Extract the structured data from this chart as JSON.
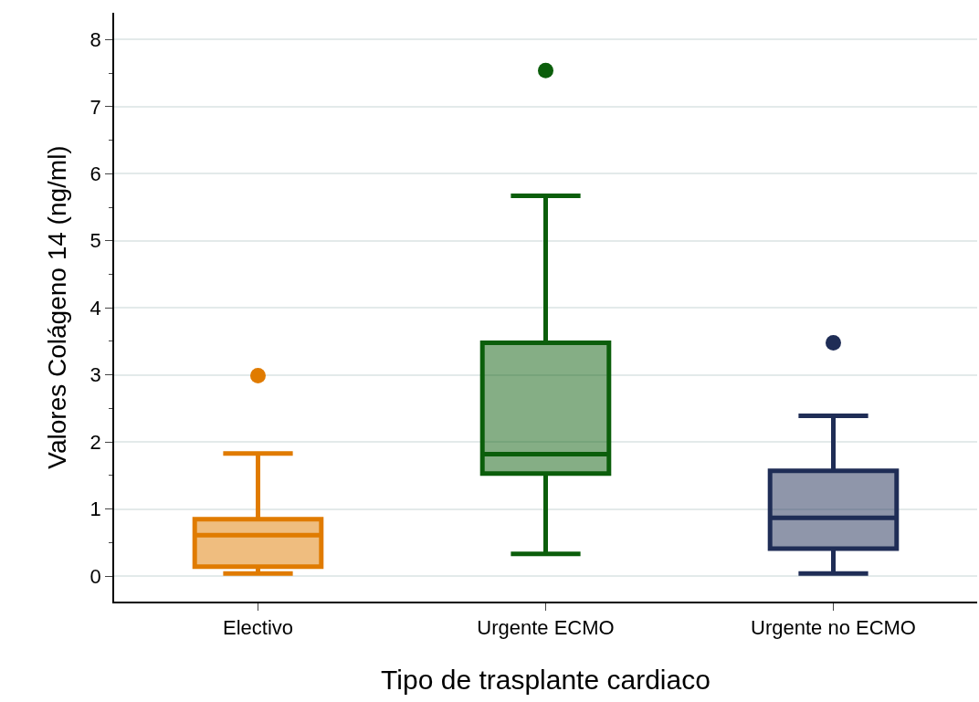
{
  "chart_data": {
    "type": "box",
    "xlabel": "Tipo de trasplante cardiaco",
    "ylabel": "Valores Colágeno 14 (ng/ml)",
    "categories": [
      "Electivo",
      "Urgente ECMO",
      "Urgente no ECMO"
    ],
    "colors": [
      "#e07b00",
      "#0b5e0b",
      "#1f2d56"
    ],
    "boxes": [
      {
        "low": 0.04,
        "q1": 0.14,
        "median": 0.61,
        "q3": 0.85,
        "high": 1.83,
        "outliers": [
          2.99
        ]
      },
      {
        "low": 0.33,
        "q1": 1.53,
        "median": 1.82,
        "q3": 3.48,
        "high": 5.67,
        "outliers": [
          7.54
        ]
      },
      {
        "low": 0.04,
        "q1": 0.41,
        "median": 0.87,
        "q3": 1.57,
        "high": 2.39,
        "outliers": [
          3.48
        ]
      }
    ],
    "ylim": [
      -0.38,
      8.4
    ],
    "yticks": [
      0,
      {
        "value": 0.5,
        "label": null
      },
      1,
      {
        "value": 1.5,
        "label": null
      },
      2,
      {
        "value": 2.5,
        "label": null
      },
      3,
      {
        "value": 3.5,
        "label": null
      },
      4,
      {
        "value": 4.5,
        "label": null
      },
      5,
      {
        "value": 5.5,
        "label": null
      },
      6,
      {
        "value": 6.5,
        "label": null
      },
      7,
      {
        "value": 7.5,
        "label": null
      },
      8
    ],
    "grid": "y"
  }
}
